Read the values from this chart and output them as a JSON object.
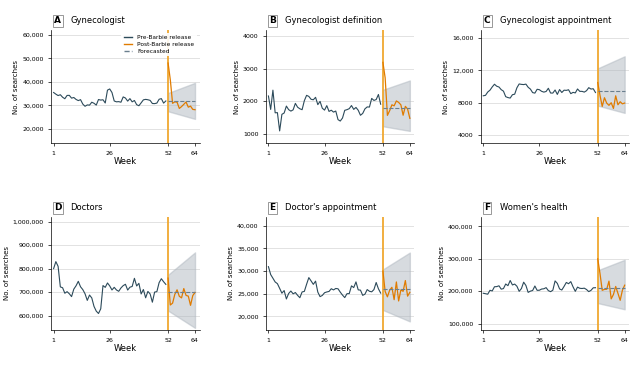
{
  "panels": [
    {
      "label": "A",
      "title": "Gynecologist",
      "ylim": [
        14000,
        62000
      ],
      "yticks": [
        20000,
        30000,
        40000,
        50000,
        60000
      ],
      "ylabel": "No. of searches",
      "pre_mean": 32000,
      "pre_std": 3500,
      "post_mean": 30000,
      "post_std": 3000,
      "forecast": 32000,
      "forecast_band": [
        27000,
        36000
      ],
      "spike_val": 48000,
      "has_legend": true
    },
    {
      "label": "B",
      "title": "Gynecologist definition",
      "ylim": [
        700,
        4200
      ],
      "yticks": [
        1000,
        2000,
        3000,
        4000
      ],
      "ylabel": "No. of searches",
      "pre_mean": 1800,
      "pre_std": 400,
      "post_mean": 1700,
      "post_std": 350,
      "forecast": 1800,
      "forecast_band": [
        1200,
        2400
      ],
      "spike_val": 3200,
      "has_legend": false
    },
    {
      "label": "C",
      "title": "Gynecologist appointment",
      "ylim": [
        3000,
        17000
      ],
      "yticks": [
        4000,
        8000,
        12000,
        16000
      ],
      "ylabel": "No. of searches",
      "pre_mean": 9500,
      "pre_std": 1200,
      "post_mean": 8000,
      "post_std": 1000,
      "forecast": 9500,
      "forecast_band": [
        7500,
        12500
      ],
      "spike_val": 10500,
      "has_legend": false
    },
    {
      "label": "D",
      "title": "Doctors",
      "ylim": [
        540000,
        1020000
      ],
      "yticks": [
        600000,
        700000,
        800000,
        900000,
        1000000
      ],
      "ylabel": "No. of searches",
      "pre_mean": 710000,
      "pre_std": 70000,
      "post_mean": 685000,
      "post_std": 60000,
      "forecast": 700000,
      "forecast_band": [
        610000,
        790000
      ],
      "spike_val": 760000,
      "has_legend": false
    },
    {
      "label": "E",
      "title": "Doctor's appointment",
      "ylim": [
        17000,
        42000
      ],
      "yticks": [
        20000,
        25000,
        30000,
        35000,
        40000
      ],
      "ylabel": "No. of searches",
      "pre_mean": 26000,
      "pre_std": 3000,
      "post_mean": 25000,
      "post_std": 2800,
      "forecast": 26000,
      "forecast_band": [
        21000,
        31000
      ],
      "spike_val": 30000,
      "has_legend": false
    },
    {
      "label": "F",
      "title": "Women's health",
      "ylim": [
        80000,
        430000
      ],
      "yticks": [
        100000,
        200000,
        300000,
        400000
      ],
      "ylabel": "No. of searches",
      "pre_mean": 210000,
      "pre_std": 40000,
      "post_mean": 195000,
      "post_std": 35000,
      "forecast": 210000,
      "forecast_band": [
        160000,
        270000
      ],
      "spike_val": 300000,
      "has_legend": false
    }
  ],
  "pre_color": "#2c4a5a",
  "post_color": "#e07b00",
  "forecast_color": "#6a7f8e",
  "barbie_week": 52,
  "barbie_color": "#f0a830",
  "band_color": "#b0b8c0",
  "n_pre_weeks": 51,
  "n_post_weeks": 12,
  "xlabel": "Week",
  "xticks": [
    1,
    26,
    52,
    64
  ]
}
